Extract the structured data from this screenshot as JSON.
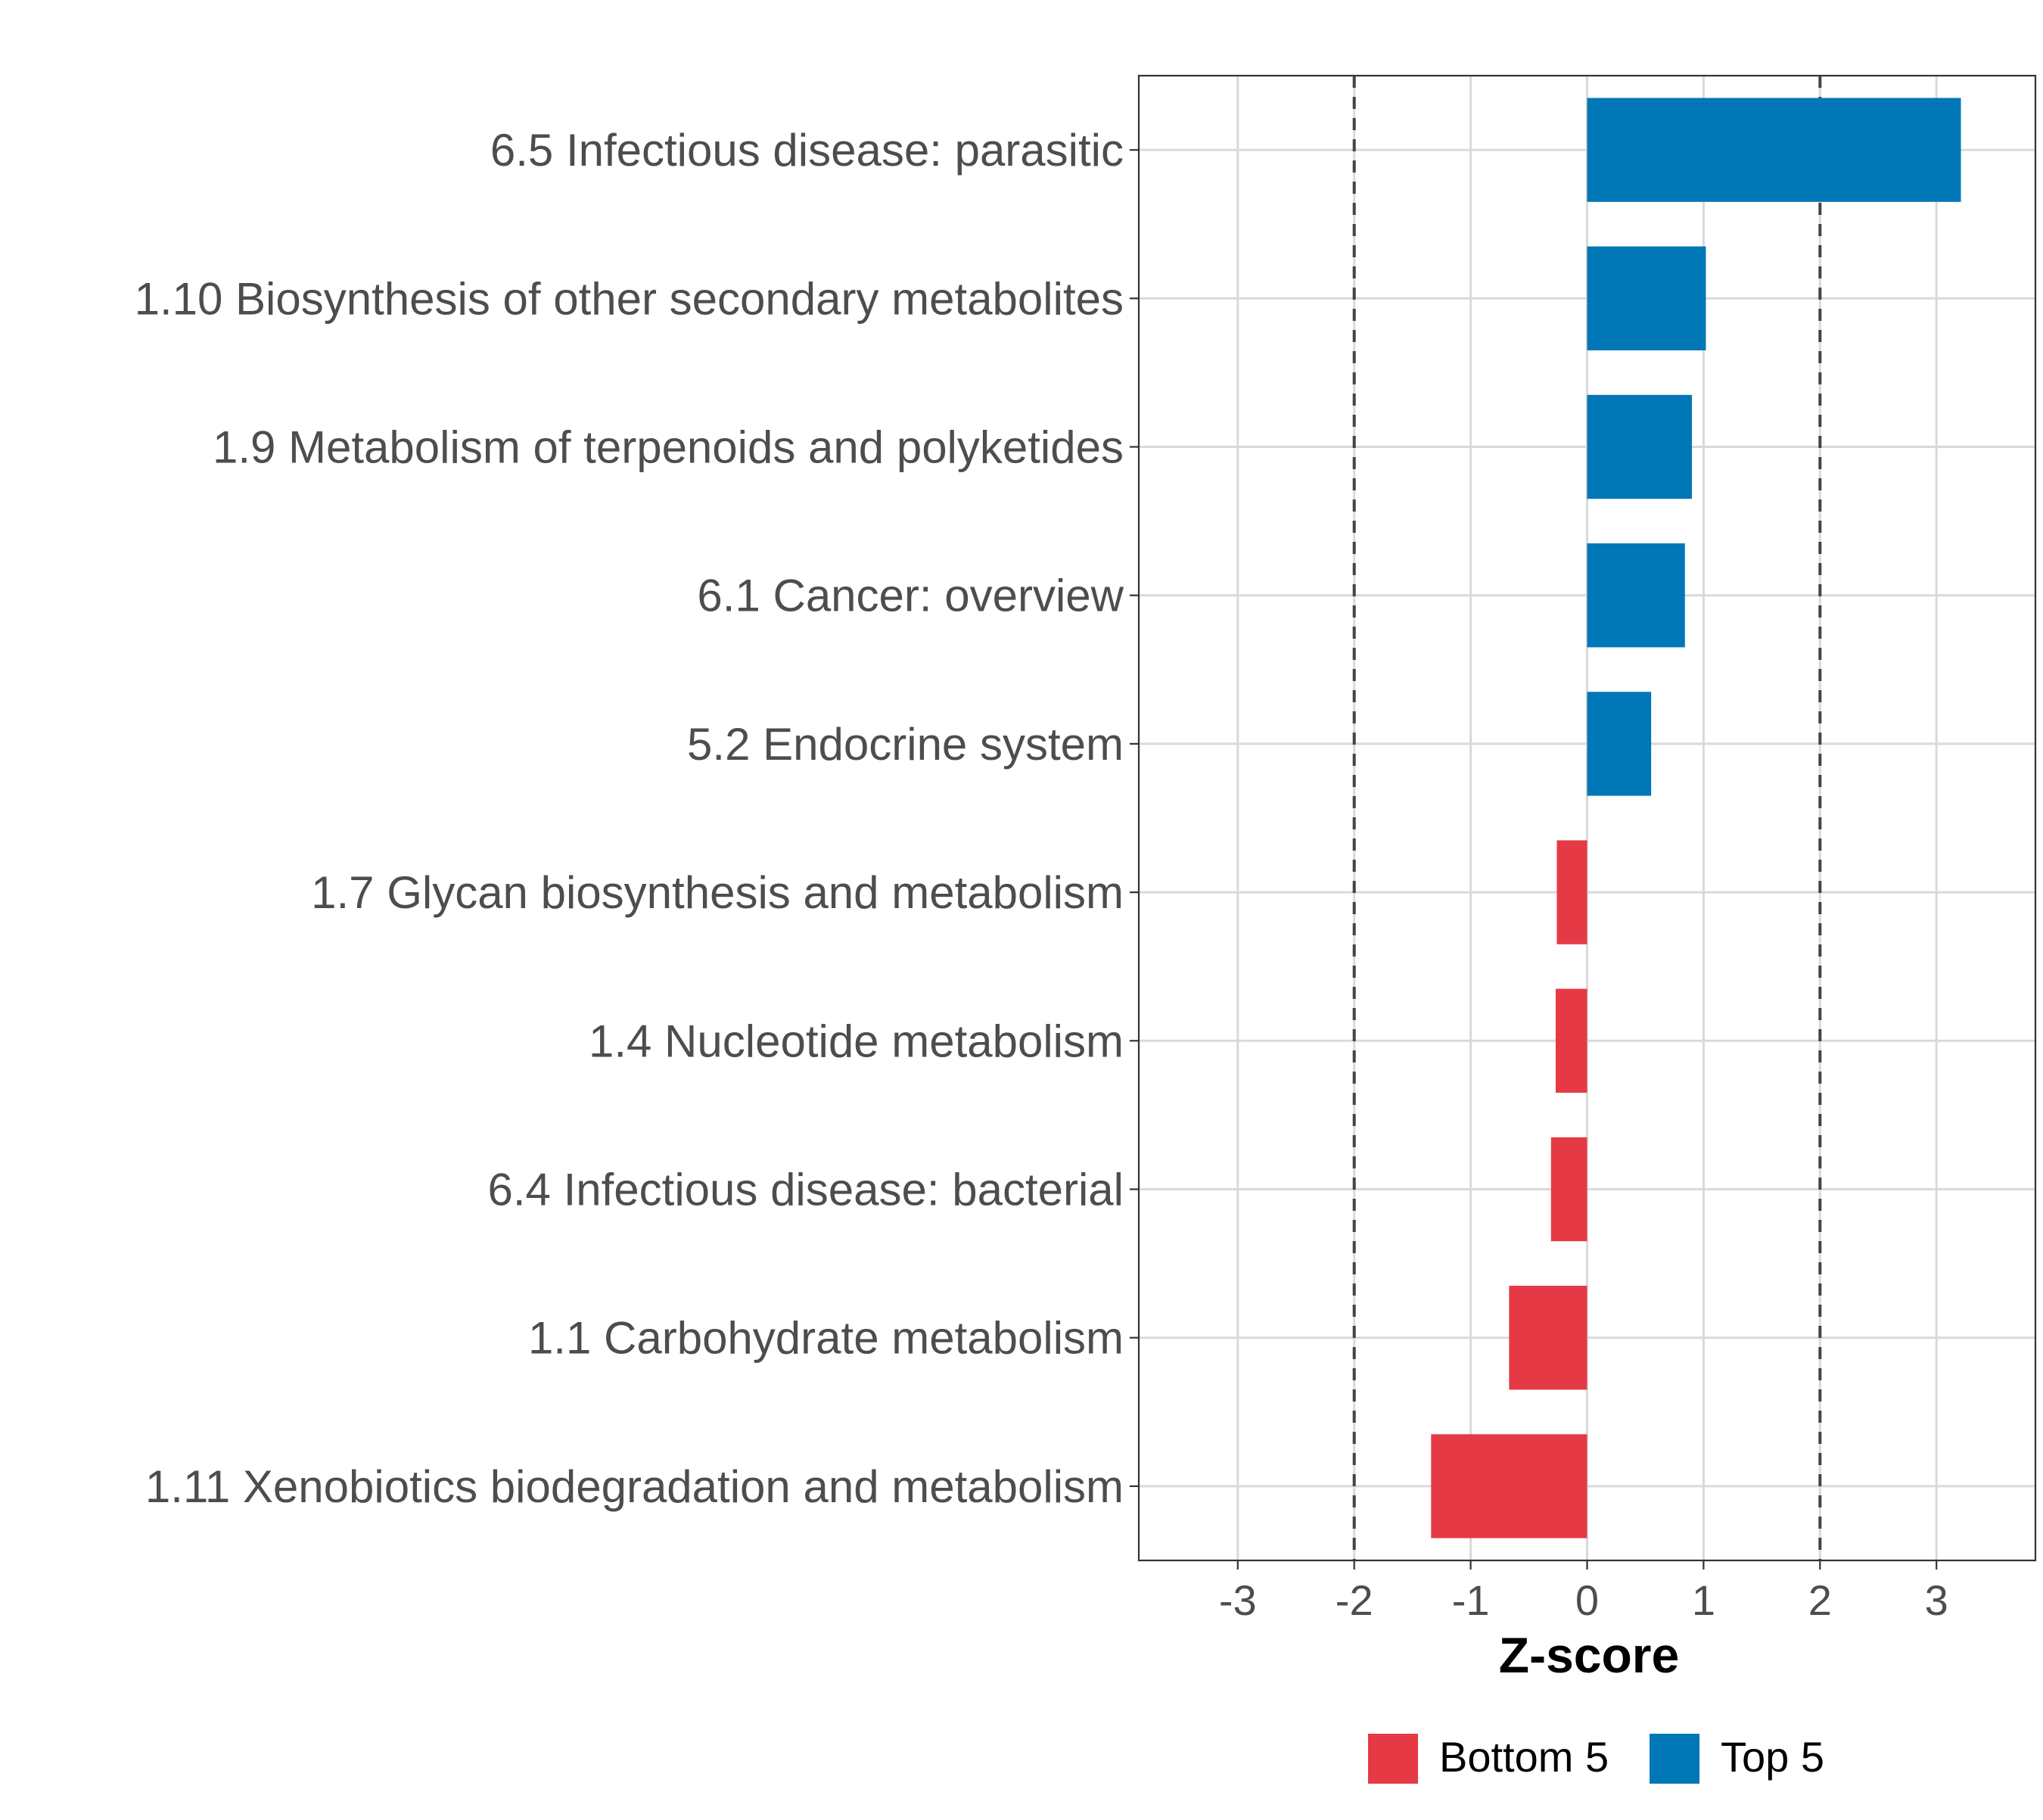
{
  "chart_data": {
    "type": "bar",
    "orientation": "horizontal",
    "xlabel": "Z-score",
    "xlim": [
      -3.85,
      3.85
    ],
    "xticks": [
      -3,
      -2,
      -1,
      0,
      1,
      2,
      3
    ],
    "grid": true,
    "reference_lines": [
      -2,
      2
    ],
    "categories": [
      "6.5 Infectious disease: parasitic",
      "1.10 Biosynthesis of other secondary metabolites",
      "1.9 Metabolism of terpenoids and polyketides",
      "6.1 Cancer: overview",
      "5.2 Endocrine system",
      "1.7 Glycan biosynthesis and metabolism",
      "1.4 Nucleotide metabolism",
      "6.4 Infectious disease: bacterial",
      "1.1 Carbohydrate metabolism",
      "1.11 Xenobiotics biodegradation and metabolism"
    ],
    "values": [
      3.21,
      1.02,
      0.9,
      0.84,
      0.55,
      -0.26,
      -0.27,
      -0.31,
      -0.67,
      -1.34
    ],
    "groups": [
      "Top 5",
      "Top 5",
      "Top 5",
      "Top 5",
      "Top 5",
      "Bottom 5",
      "Bottom 5",
      "Bottom 5",
      "Bottom 5",
      "Bottom 5"
    ],
    "legend": {
      "position": "bottom",
      "entries": [
        {
          "label": "Bottom 5",
          "color": "#e63946"
        },
        {
          "label": "Top 5",
          "color": "#0077b6"
        }
      ]
    }
  }
}
